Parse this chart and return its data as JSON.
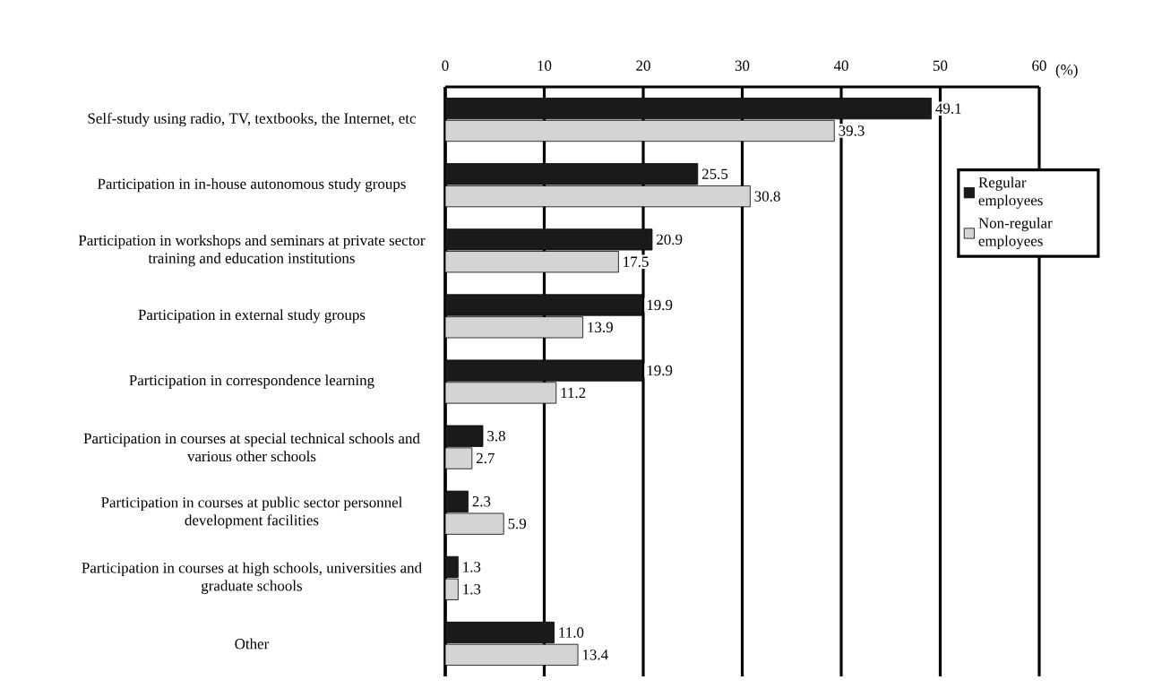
{
  "chart_data": {
    "type": "bar",
    "orientation": "horizontal",
    "xlabel": "(%)",
    "categories": [
      "Self-study using radio, TV, textbooks, the Internet, etc",
      "Participation in in-house autonomous study groups",
      "Participation in workshops and seminars at private sector training and education institutions",
      "Participation in external study groups",
      "Participation in correspondence learning",
      "Participation in courses at special technical schools and various other schools",
      "Participation in courses at public sector personnel development facilities",
      "Participation in courses at high schools, universities and graduate schools",
      "Other"
    ],
    "series": [
      {
        "name": "Regular employees",
        "color": "#1a1a1a",
        "values": [
          49.1,
          25.5,
          20.9,
          19.9,
          19.9,
          3.8,
          2.3,
          1.3,
          11.0
        ],
        "value_labels": [
          "49.1",
          "25.5",
          "20.9",
          "19.9",
          "19.9",
          "3.8",
          "2.3",
          "1.3",
          "11.0"
        ]
      },
      {
        "name": "Non-regular employees",
        "color": "#d4d4d4",
        "values": [
          39.3,
          30.8,
          17.5,
          13.9,
          11.2,
          2.7,
          5.9,
          1.3,
          13.4
        ],
        "value_labels": [
          "39.3",
          "30.8",
          "17.5",
          "13.9",
          "11.2",
          "2.7",
          "5.9",
          "1.3",
          "13.4"
        ]
      }
    ],
    "xlim": [
      0,
      60
    ],
    "xticks": [
      0,
      10,
      20,
      30,
      40,
      50,
      60
    ],
    "grid": "x",
    "legend": "right"
  }
}
